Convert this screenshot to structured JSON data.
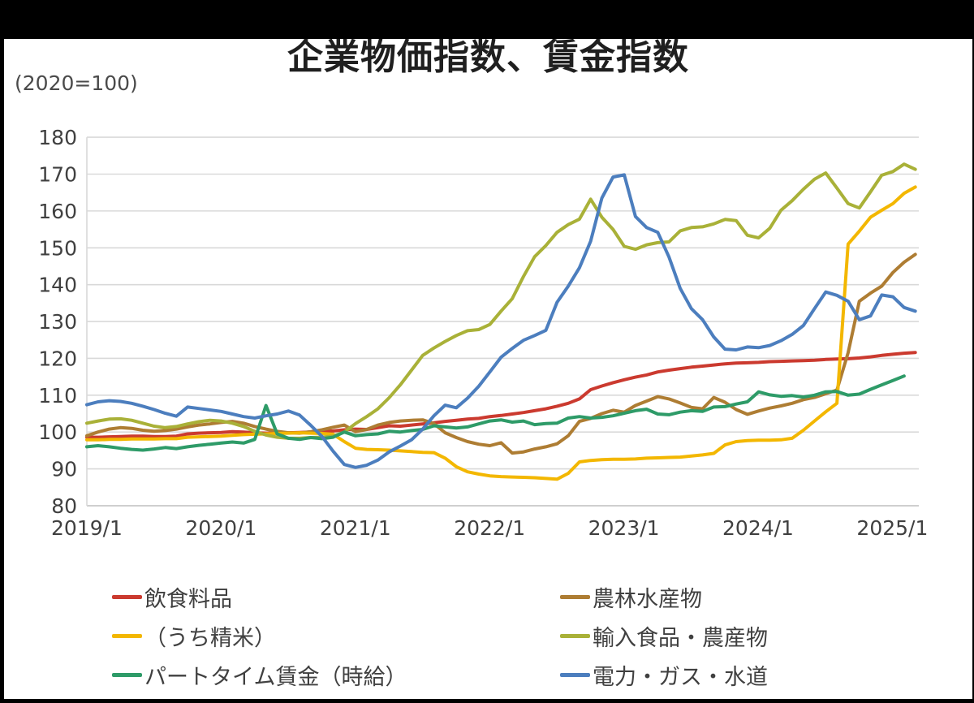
{
  "frame": {
    "background_color": "#000000",
    "sheet_color": "#ffffff"
  },
  "header": {
    "title": "企業物価指数、賃金指数",
    "subtitle": "(2020=100)"
  },
  "chart_data": {
    "type": "line",
    "title": "企業物価指数、賃金指数",
    "subtitle": "(2020=100)",
    "x_start": "2019/1",
    "x_end": "2025/3",
    "points_per_series": 75,
    "x_tick_labels": [
      "2019/1",
      "2020/1",
      "2021/1",
      "2022/1",
      "2023/1",
      "2024/1",
      "2025/1"
    ],
    "ylim": [
      80,
      180
    ],
    "ytick_step": 10,
    "grid": true,
    "grid_color": "#D9D9D9",
    "axis_line_color": "#BFBFBF",
    "axis_text_color": "#404040",
    "legend_position": "bottom",
    "legend_columns": 2,
    "series": [
      {
        "name": "飲食料品",
        "color": "#CB3A2F",
        "values": [
          98.6,
          98.6,
          98.7,
          98.8,
          98.9,
          98.9,
          98.8,
          98.8,
          98.9,
          99.5,
          99.7,
          99.8,
          99.9,
          100.1,
          100.0,
          99.8,
          99.7,
          99.7,
          99.8,
          99.9,
          100.0,
          100.1,
          100.3,
          100.6,
          100.8,
          100.7,
          101.2,
          101.7,
          101.6,
          101.9,
          102.2,
          102.5,
          102.9,
          103.2,
          103.5,
          103.7,
          104.2,
          104.5,
          104.9,
          105.3,
          105.8,
          106.3,
          107.0,
          107.8,
          109.0,
          111.5,
          112.5,
          113.4,
          114.2,
          114.9,
          115.5,
          116.3,
          116.8,
          117.2,
          117.6,
          117.9,
          118.2,
          118.5,
          118.7,
          118.8,
          118.9,
          119.1,
          119.2,
          119.3,
          119.4,
          119.5,
          119.7,
          119.8,
          119.9,
          120.1,
          120.4,
          120.8,
          121.1,
          121.4,
          121.6
        ]
      },
      {
        "name": "農林水産物",
        "color": "#AE7D33",
        "values": [
          99.0,
          100.0,
          100.8,
          101.2,
          101.0,
          100.5,
          100.2,
          100.4,
          100.8,
          101.4,
          101.9,
          102.2,
          102.6,
          102.9,
          102.4,
          101.5,
          100.8,
          100.2,
          99.8,
          99.7,
          100.1,
          100.6,
          101.3,
          101.9,
          100.1,
          100.7,
          101.9,
          102.6,
          103.0,
          103.2,
          103.3,
          102.3,
          99.8,
          98.5,
          97.4,
          96.7,
          96.3,
          97.1,
          94.3,
          94.6,
          95.4,
          96.0,
          96.8,
          99.0,
          102.9,
          103.7,
          105.0,
          105.9,
          105.4,
          107.2,
          108.4,
          109.6,
          109.0,
          107.9,
          106.7,
          106.3,
          109.4,
          108.1,
          106.1,
          104.8,
          105.7,
          106.5,
          107.1,
          107.8,
          108.8,
          109.4,
          110.4,
          111.4,
          121.5,
          135.5,
          137.7,
          139.6,
          143.3,
          146.1,
          148.2
        ]
      },
      {
        "name": "（うち精米）",
        "color": "#F3B700",
        "values": [
          97.9,
          97.9,
          98.0,
          98.0,
          98.1,
          98.1,
          98.1,
          98.2,
          98.2,
          98.6,
          98.7,
          98.8,
          98.9,
          99.1,
          99.3,
          99.4,
          99.5,
          99.6,
          99.7,
          99.8,
          99.7,
          99.6,
          99.4,
          97.4,
          95.6,
          95.3,
          95.2,
          95.1,
          94.9,
          94.7,
          94.5,
          94.4,
          92.9,
          90.6,
          89.2,
          88.6,
          88.1,
          87.9,
          87.8,
          87.7,
          87.6,
          87.4,
          87.2,
          88.8,
          91.9,
          92.3,
          92.5,
          92.6,
          92.6,
          92.7,
          92.9,
          93.0,
          93.1,
          93.2,
          93.5,
          93.8,
          94.2,
          96.5,
          97.4,
          97.7,
          97.8,
          97.8,
          97.9,
          98.3,
          100.5,
          103.0,
          105.5,
          107.8,
          151.0,
          154.5,
          158.3,
          160.2,
          162.0,
          164.8,
          166.5
        ]
      },
      {
        "name": "輸入食品・農産物",
        "color": "#A9B138",
        "values": [
          102.4,
          103.0,
          103.5,
          103.6,
          103.2,
          102.4,
          101.6,
          101.2,
          101.5,
          102.2,
          102.8,
          103.2,
          103.0,
          102.4,
          101.5,
          100.2,
          99.2,
          98.6,
          98.3,
          98.3,
          98.5,
          98.6,
          98.9,
          100.0,
          102.3,
          104.2,
          106.3,
          109.3,
          112.8,
          116.8,
          120.8,
          122.8,
          124.6,
          126.2,
          127.5,
          127.8,
          129.2,
          132.8,
          136.2,
          142.2,
          147.6,
          150.6,
          154.2,
          156.3,
          157.8,
          163.2,
          158.3,
          155.0,
          150.4,
          149.6,
          150.8,
          151.4,
          151.6,
          154.6,
          155.5,
          155.7,
          156.5,
          157.7,
          157.4,
          153.4,
          152.7,
          155.3,
          160.2,
          162.8,
          165.9,
          168.6,
          170.3,
          166.2,
          162.0,
          160.8,
          165.2,
          169.7,
          170.7,
          172.7,
          171.3
        ]
      },
      {
        "name": "パートタイム賃金（時給）",
        "color": "#2E9B68",
        "values": [
          96.0,
          96.3,
          96.0,
          95.6,
          95.3,
          95.1,
          95.4,
          95.8,
          95.5,
          96.0,
          96.4,
          96.7,
          97.0,
          97.3,
          97.0,
          98.0,
          107.2,
          99.5,
          98.3,
          98.0,
          98.5,
          98.2,
          98.6,
          100.0,
          99.0,
          99.3,
          99.5,
          100.2,
          100.0,
          100.4,
          100.7,
          101.7,
          101.4,
          101.1,
          101.4,
          102.2,
          103.0,
          103.3,
          102.7,
          103.0,
          102.0,
          102.3,
          102.4,
          103.8,
          104.2,
          103.8,
          104.0,
          104.4,
          105.1,
          105.8,
          106.2,
          104.9,
          104.7,
          105.4,
          105.8,
          105.6,
          106.8,
          106.9,
          107.6,
          108.2,
          110.9,
          110.1,
          109.7,
          109.9,
          109.5,
          110.0,
          110.9,
          111.0,
          110.0,
          110.3,
          111.6,
          112.8,
          114.0,
          115.2,
          null
        ]
      },
      {
        "name": "電力・ガス・水道",
        "color": "#4C7EBE",
        "values": [
          107.4,
          108.2,
          108.5,
          108.3,
          107.8,
          107.0,
          106.1,
          105.1,
          104.3,
          106.8,
          106.4,
          106.0,
          105.6,
          104.9,
          104.2,
          103.8,
          104.4,
          104.9,
          105.7,
          104.6,
          101.8,
          98.8,
          94.8,
          91.2,
          90.4,
          91.0,
          92.4,
          94.6,
          96.2,
          97.9,
          100.8,
          104.4,
          107.3,
          106.6,
          109.2,
          112.4,
          116.3,
          120.3,
          122.7,
          124.9,
          126.2,
          127.6,
          135.2,
          139.6,
          144.6,
          151.8,
          163.5,
          169.2,
          169.8,
          158.5,
          155.5,
          154.2,
          147.5,
          139.0,
          133.5,
          130.5,
          125.8,
          122.5,
          122.3,
          123.1,
          122.9,
          123.5,
          124.8,
          126.5,
          128.9,
          133.5,
          138.0,
          137.1,
          135.5,
          130.5,
          131.5,
          137.2,
          136.7,
          133.8,
          132.8
        ]
      }
    ]
  },
  "legend": {
    "items": [
      {
        "label": "飲食料品",
        "series_index": 0
      },
      {
        "label": "（うち精米）",
        "series_index": 2
      },
      {
        "label": "パートタイム賃金（時給）",
        "series_index": 4
      },
      {
        "label": "農林水産物",
        "series_index": 1
      },
      {
        "label": "輸入食品・農産物",
        "series_index": 3
      },
      {
        "label": "電力・ガス・水道",
        "series_index": 5
      }
    ]
  }
}
